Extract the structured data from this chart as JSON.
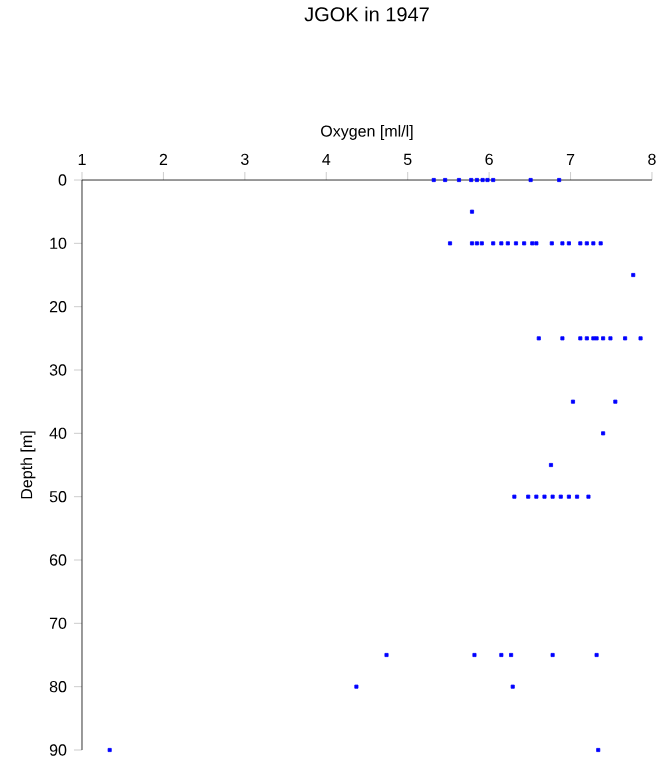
{
  "chart_data": {
    "type": "scatter",
    "title": "JGOK in 1947",
    "xlabel": "Oxygen [ml/l]",
    "ylabel": "Depth [m]",
    "xlim": [
      1,
      8
    ],
    "xticks": [
      1,
      2,
      3,
      4,
      5,
      6,
      7,
      8
    ],
    "ylim": [
      90,
      0
    ],
    "yticks": [
      0,
      10,
      20,
      30,
      40,
      50,
      60,
      70,
      80,
      90
    ],
    "marker": "square",
    "series": [
      {
        "color": "#0000ff",
        "x": [
          5.32,
          5.46,
          5.63,
          5.78,
          5.85,
          5.92,
          5.98,
          6.05,
          6.51,
          6.86,
          5.79,
          5.52,
          5.79,
          5.85,
          5.91,
          6.05,
          6.15,
          6.23,
          6.33,
          6.43,
          6.53,
          6.58,
          6.77,
          6.9,
          6.98,
          7.12,
          7.2,
          7.28,
          7.37,
          7.77,
          6.61,
          6.9,
          7.12,
          7.2,
          7.28,
          7.32,
          7.4,
          7.49,
          7.67,
          7.86,
          7.03,
          7.55,
          7.4,
          6.76,
          6.31,
          6.48,
          6.58,
          6.68,
          6.78,
          6.88,
          6.98,
          7.08,
          7.22,
          4.74,
          5.82,
          6.15,
          6.27,
          6.78,
          7.32,
          4.37,
          6.29,
          1.34,
          7.34
        ],
        "values": [
          0,
          0,
          0,
          0,
          0,
          0,
          0,
          0,
          0,
          0,
          5,
          10,
          10,
          10,
          10,
          10,
          10,
          10,
          10,
          10,
          10,
          10,
          10,
          10,
          10,
          10,
          10,
          10,
          10,
          15,
          25,
          25,
          25,
          25,
          25,
          25,
          25,
          25,
          25,
          25,
          35,
          35,
          40,
          45,
          50,
          50,
          50,
          50,
          50,
          50,
          50,
          50,
          50,
          75,
          75,
          75,
          75,
          75,
          75,
          80,
          80,
          90,
          90
        ]
      }
    ]
  }
}
